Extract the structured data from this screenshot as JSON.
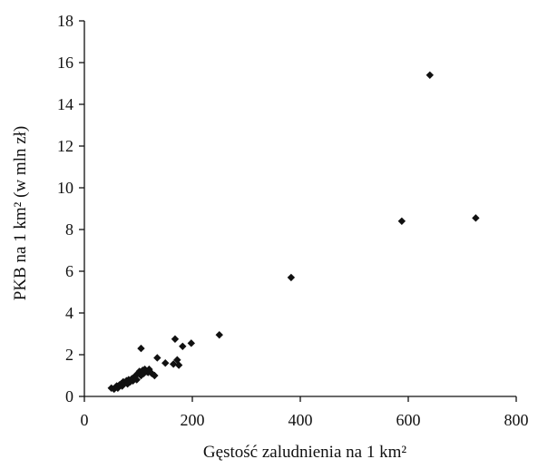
{
  "chart_data": {
    "type": "scatter",
    "title": "",
    "xlabel": "Gęstość zaludnienia na 1 km²",
    "ylabel": "PKB na 1 km² (w mln zł)",
    "xlim": [
      0,
      800
    ],
    "ylim": [
      0,
      18
    ],
    "xticks": [
      "0",
      "200",
      "400",
      "600",
      "800"
    ],
    "yticks": [
      "0",
      "2",
      "4",
      "6",
      "8",
      "10",
      "12",
      "14",
      "16",
      "18"
    ],
    "grid": false,
    "legend": "none",
    "marker": "diamond",
    "color": "#111111",
    "points": [
      {
        "x": 50,
        "y": 0.4
      },
      {
        "x": 55,
        "y": 0.35
      },
      {
        "x": 58,
        "y": 0.45
      },
      {
        "x": 60,
        "y": 0.5
      },
      {
        "x": 62,
        "y": 0.4
      },
      {
        "x": 65,
        "y": 0.55
      },
      {
        "x": 68,
        "y": 0.6
      },
      {
        "x": 70,
        "y": 0.5
      },
      {
        "x": 72,
        "y": 0.7
      },
      {
        "x": 75,
        "y": 0.65
      },
      {
        "x": 78,
        "y": 0.75
      },
      {
        "x": 80,
        "y": 0.6
      },
      {
        "x": 82,
        "y": 0.8
      },
      {
        "x": 85,
        "y": 0.7
      },
      {
        "x": 88,
        "y": 0.85
      },
      {
        "x": 90,
        "y": 0.75
      },
      {
        "x": 92,
        "y": 0.9
      },
      {
        "x": 95,
        "y": 1.0
      },
      {
        "x": 97,
        "y": 0.8
      },
      {
        "x": 100,
        "y": 1.1
      },
      {
        "x": 102,
        "y": 1.2
      },
      {
        "x": 105,
        "y": 1.0
      },
      {
        "x": 108,
        "y": 1.25
      },
      {
        "x": 110,
        "y": 1.1
      },
      {
        "x": 112,
        "y": 1.3
      },
      {
        "x": 115,
        "y": 1.2
      },
      {
        "x": 118,
        "y": 1.15
      },
      {
        "x": 120,
        "y": 1.3
      },
      {
        "x": 125,
        "y": 1.1
      },
      {
        "x": 130,
        "y": 1.0
      },
      {
        "x": 105,
        "y": 2.3
      },
      {
        "x": 135,
        "y": 1.85
      },
      {
        "x": 150,
        "y": 1.6
      },
      {
        "x": 165,
        "y": 1.55
      },
      {
        "x": 168,
        "y": 2.75
      },
      {
        "x": 172,
        "y": 1.75
      },
      {
        "x": 175,
        "y": 1.5
      },
      {
        "x": 182,
        "y": 2.4
      },
      {
        "x": 198,
        "y": 2.55
      },
      {
        "x": 250,
        "y": 2.95
      },
      {
        "x": 383,
        "y": 5.7
      },
      {
        "x": 588,
        "y": 8.4
      },
      {
        "x": 640,
        "y": 15.4
      },
      {
        "x": 725,
        "y": 8.55
      }
    ]
  }
}
